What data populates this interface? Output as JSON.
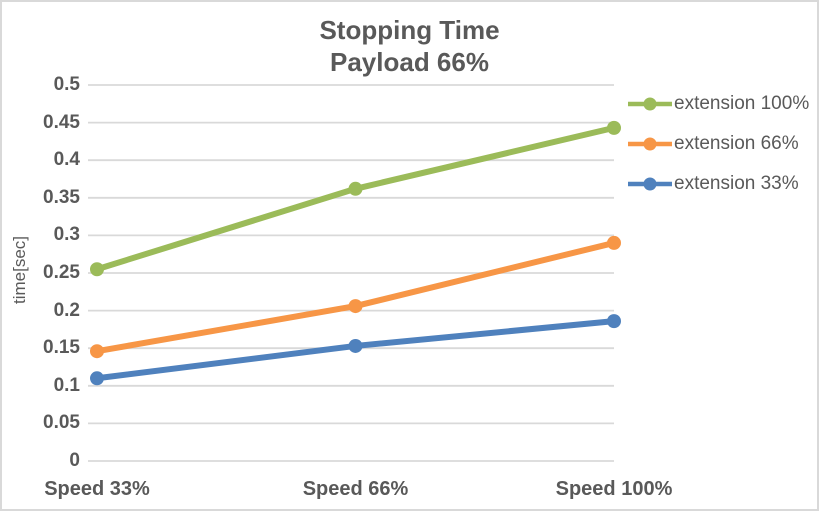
{
  "chart_data": {
    "type": "line",
    "title": "Stopping Time",
    "subtitle": "Payload 66%",
    "categories": [
      "Speed 33%",
      "Speed 66%",
      "Speed 100%"
    ],
    "series": [
      {
        "name": "extension 100%",
        "color": "#9BBB59",
        "values": [
          0.255,
          0.362,
          0.443
        ]
      },
      {
        "name": "extension 66%",
        "color": "#F79646",
        "values": [
          0.146,
          0.206,
          0.29
        ]
      },
      {
        "name": "extension 33%",
        "color": "#4F81BD",
        "values": [
          0.11,
          0.153,
          0.186
        ]
      }
    ],
    "xlabel": "",
    "ylabel": "time[sec]",
    "ylim": [
      0,
      0.5
    ],
    "ytick_step": 0.05,
    "ytick_labels": [
      "0",
      "0.05",
      "0.1",
      "0.15",
      "0.2",
      "0.25",
      "0.3",
      "0.35",
      "0.4",
      "0.45",
      "0.5"
    ],
    "grid": true,
    "legend_position": "right",
    "marker": "circle"
  },
  "colors": {
    "text": "#595959",
    "gridline": "#D9D9D9",
    "border": "#D9D9D9",
    "background": "#FFFFFF"
  }
}
